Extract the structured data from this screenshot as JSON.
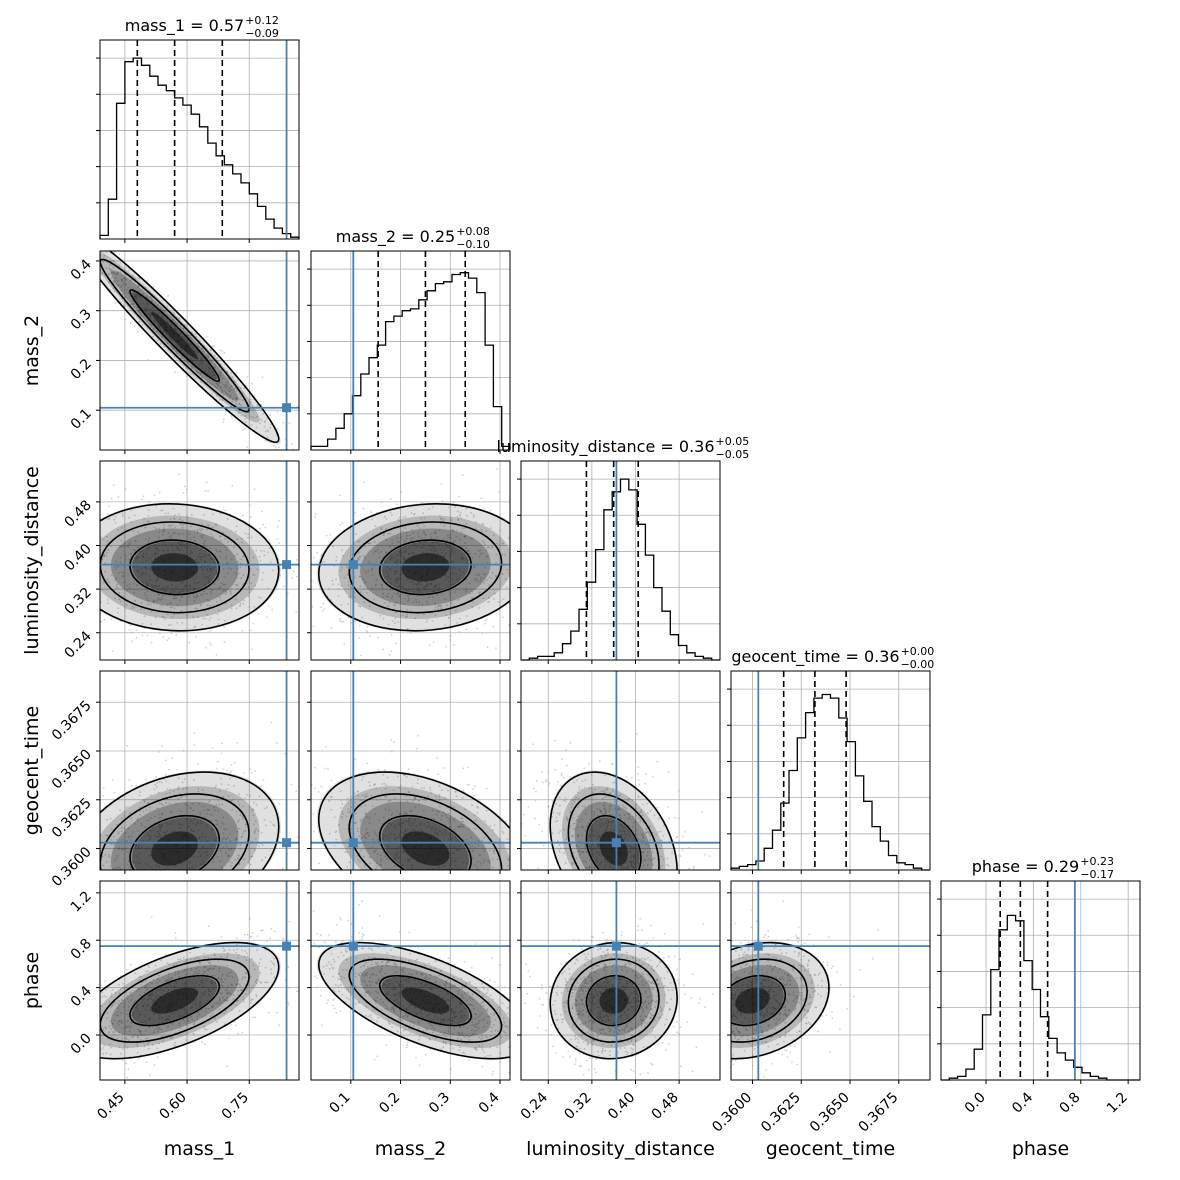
{
  "colors": {
    "truth": "#4682b4",
    "hist": "#000000",
    "grid": "#b0b0b0",
    "points": "#9a9a9a"
  },
  "chart_data": {
    "type": "corner",
    "parameters": [
      {
        "name": "mass_1",
        "label": "mass_1",
        "title": "mass_1 = 0.57",
        "median": 0.57,
        "plus": "+0.12",
        "minus": "−0.09",
        "range": [
          0.39,
          0.87
        ],
        "ticks": [
          0.45,
          0.6,
          0.75
        ],
        "tick_labels": [
          "0.45",
          "0.60",
          "0.75"
        ],
        "truth": 0.84,
        "quantiles": [
          0.48,
          0.57,
          0.685
        ],
        "hist": [
          0.02,
          0.22,
          0.75,
          0.98,
          1.0,
          0.96,
          0.9,
          0.85,
          0.82,
          0.78,
          0.74,
          0.69,
          0.62,
          0.53,
          0.46,
          0.41,
          0.36,
          0.31,
          0.25,
          0.18,
          0.11,
          0.06,
          0.03,
          0.01
        ]
      },
      {
        "name": "mass_2",
        "label": "mass_2",
        "title": "mass_2 = 0.25",
        "median": 0.25,
        "plus": "+0.08",
        "minus": "−0.10",
        "range": [
          0.02,
          0.42
        ],
        "ticks": [
          0.1,
          0.2,
          0.3,
          0.4
        ],
        "tick_labels": [
          "0.1",
          "0.2",
          "0.3",
          "0.4"
        ],
        "truth": 0.105,
        "quantiles": [
          0.155,
          0.25,
          0.33
        ],
        "hist": [
          0.02,
          0.02,
          0.06,
          0.12,
          0.2,
          0.3,
          0.42,
          0.51,
          0.58,
          0.71,
          0.74,
          0.77,
          0.78,
          0.83,
          0.88,
          0.92,
          0.93,
          0.97,
          0.98,
          0.95,
          0.87,
          0.58,
          0.24,
          0.02
        ]
      },
      {
        "name": "luminosity_distance",
        "label": "luminosity_distance",
        "title": "luminosity_distance = 0.36",
        "median": 0.36,
        "plus": "+0.05",
        "minus": "−0.05",
        "range": [
          0.19,
          0.555
        ],
        "ticks": [
          0.24,
          0.32,
          0.4,
          0.48
        ],
        "tick_labels": [
          "0.24",
          "0.32",
          "0.40",
          "0.48"
        ],
        "truth": 0.365,
        "quantiles": [
          0.31,
          0.36,
          0.405
        ],
        "hist": [
          0.0,
          0.01,
          0.02,
          0.02,
          0.04,
          0.09,
          0.16,
          0.28,
          0.43,
          0.61,
          0.83,
          0.93,
          1.0,
          0.94,
          0.75,
          0.58,
          0.4,
          0.27,
          0.14,
          0.08,
          0.04,
          0.02,
          0.01,
          0.0
        ]
      },
      {
        "name": "geocent_time",
        "label": "geocent_time",
        "title": "geocent_time = 0.36",
        "median": 0.36,
        "plus": "+0.00",
        "minus": "−0.00",
        "range": [
          0.3589,
          0.3691
        ],
        "ticks": [
          0.36,
          0.3625,
          0.365,
          0.3675
        ],
        "tick_labels": [
          "0.3600",
          "0.3625",
          "0.3650",
          "0.3675"
        ],
        "truth": 0.3603,
        "quantiles": [
          0.3616,
          0.3632,
          0.3648
        ],
        "hist": [
          0.01,
          0.02,
          0.03,
          0.05,
          0.12,
          0.22,
          0.37,
          0.55,
          0.73,
          0.87,
          0.95,
          0.97,
          0.95,
          0.84,
          0.71,
          0.52,
          0.38,
          0.24,
          0.16,
          0.08,
          0.04,
          0.03,
          0.01,
          0.0
        ]
      },
      {
        "name": "phase",
        "label": "phase",
        "title": "phase = 0.29",
        "median": 0.29,
        "plus": "+0.23",
        "minus": "−0.17",
        "range": [
          -0.38,
          1.3
        ],
        "ticks": [
          0.0,
          0.4,
          0.8,
          1.2
        ],
        "tick_labels": [
          "0.0",
          "0.4",
          "0.8",
          "1.2"
        ],
        "truth": 0.75,
        "quantiles": [
          0.12,
          0.29,
          0.52
        ],
        "hist": [
          0.0,
          0.01,
          0.02,
          0.06,
          0.17,
          0.36,
          0.61,
          0.83,
          0.91,
          0.88,
          0.66,
          0.5,
          0.35,
          0.23,
          0.15,
          0.11,
          0.07,
          0.04,
          0.02,
          0.01,
          0.0,
          0.0,
          0.0,
          0.0
        ]
      }
    ],
    "correlations": [
      [
        1.0,
        -0.97,
        -0.05,
        0.28,
        0.58
      ],
      [
        -0.97,
        1.0,
        0.1,
        -0.38,
        -0.62
      ],
      [
        -0.05,
        0.1,
        1.0,
        -0.3,
        0.05
      ],
      [
        0.28,
        -0.38,
        -0.3,
        1.0,
        0.22
      ],
      [
        0.58,
        -0.62,
        0.05,
        0.22,
        1.0
      ]
    ],
    "grid": true,
    "legend": "none"
  }
}
